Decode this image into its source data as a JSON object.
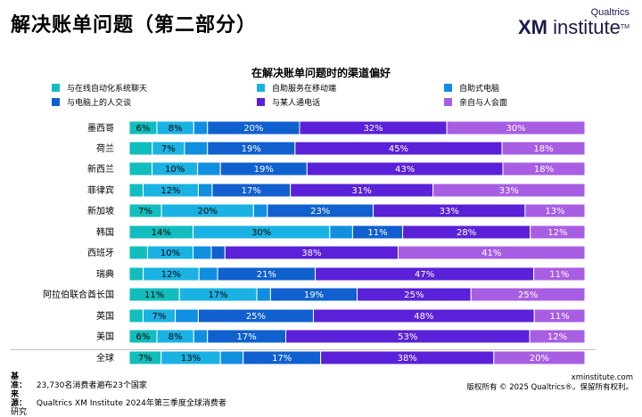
{
  "header": {
    "title": "解决账单问题（第二部分）",
    "logo_top": "Qualtrics",
    "logo_main_bold": "XM",
    "logo_main_rest": " institute",
    "logo_tm": "TM"
  },
  "footer": {
    "base_label": "基准：",
    "base_text": "23,730名消费者遍布23个国家",
    "source_label": "来源：",
    "source_text": "Qualtrics XM Institute 2024年第三季度全球消费者",
    "source_text2": "研究",
    "site": "xminstitute.com",
    "copyright": "版权所有 © 2025 Qualtrics®。保留所有权利。"
  },
  "chart_data": {
    "type": "bar",
    "orientation": "horizontal",
    "stacked": true,
    "percent": true,
    "title": "在解决账单问题时的渠道偏好",
    "legend_position": "top",
    "categories": [
      "墨西哥",
      "荷兰",
      "新西兰",
      "菲律宾",
      "新加坡",
      "韩国",
      "西班牙",
      "瑞典",
      "阿拉伯联合酋长国",
      "英国",
      "美国",
      "全球"
    ],
    "series": [
      {
        "name": "与在线自动化系统聊天",
        "color": "#12bdbd",
        "values": [
          6,
          5,
          5,
          3,
          7,
          14,
          4,
          3,
          11,
          3,
          6,
          7
        ],
        "labels": [
          "6%",
          "",
          "",
          "",
          "7%",
          "14%",
          "",
          "",
          "11%",
          "",
          "6%",
          "7%"
        ]
      },
      {
        "name": "自助服务在移动端",
        "color": "#19b2e3",
        "values": [
          8,
          7,
          10,
          12,
          20,
          30,
          10,
          12,
          17,
          7,
          8,
          13
        ],
        "labels": [
          "8%",
          "7%",
          "10%",
          "12%",
          "20%",
          "30%",
          "10%",
          "12%",
          "17%",
          "7%",
          "8%",
          "13%"
        ]
      },
      {
        "name": "自助式电脑",
        "color": "#108fe0",
        "values": [
          3,
          5,
          5,
          3,
          3,
          5,
          4,
          4,
          3,
          5,
          3,
          5
        ],
        "labels": [
          "",
          "",
          "",
          "",
          "",
          "",
          "",
          "",
          "",
          "",
          "",
          ""
        ]
      },
      {
        "name": "与电脑上的人交谈",
        "color": "#1060cf",
        "values": [
          20,
          19,
          19,
          17,
          23,
          11,
          3,
          21,
          19,
          25,
          17,
          17
        ],
        "labels": [
          "20%",
          "19%",
          "19%",
          "17%",
          "23%",
          "11%",
          "",
          "21%",
          "19%",
          "25%",
          "17%",
          "17%"
        ]
      },
      {
        "name": "与某人通电话",
        "color": "#5a21d8",
        "values": [
          32,
          45,
          43,
          31,
          33,
          28,
          38,
          47,
          25,
          48,
          53,
          38
        ],
        "labels": [
          "32%",
          "45%",
          "43%",
          "31%",
          "33%",
          "28%",
          "38%",
          "47%",
          "25%",
          "48%",
          "53%",
          "38%"
        ]
      },
      {
        "name": "亲自与人会面",
        "color": "#a85ee3",
        "values": [
          30,
          18,
          18,
          33,
          13,
          12,
          41,
          11,
          25,
          11,
          12,
          20
        ],
        "labels": [
          "30%",
          "18%",
          "18%",
          "33%",
          "13%",
          "12%",
          "41%",
          "11%",
          "25%",
          "11%",
          "12%",
          "20%"
        ]
      }
    ],
    "xlim": [
      0,
      100
    ]
  }
}
